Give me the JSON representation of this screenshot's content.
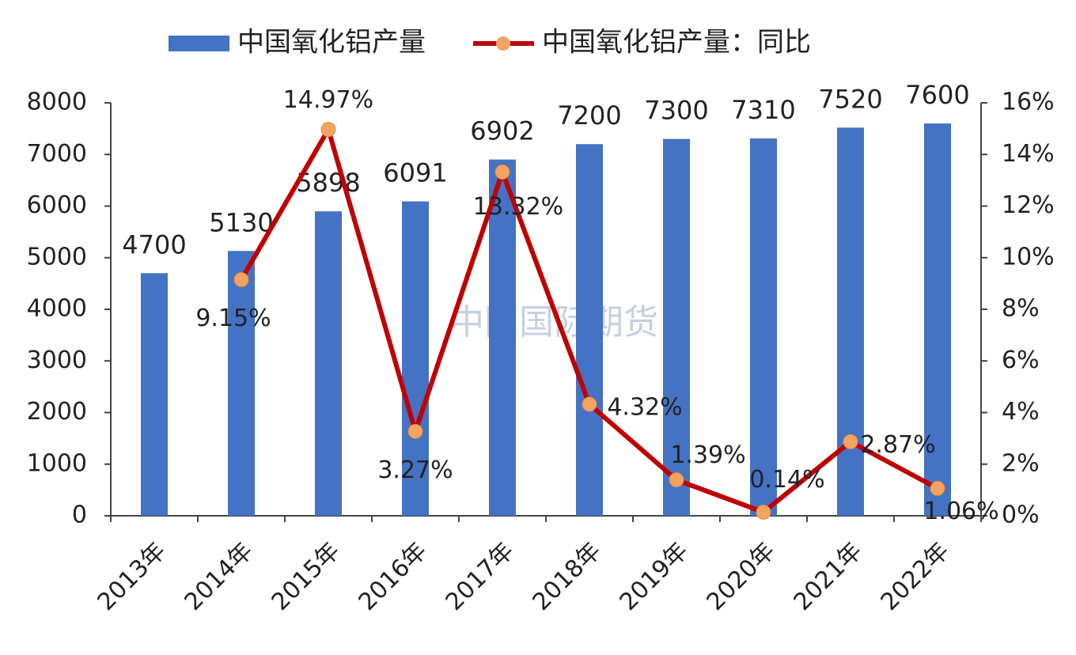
{
  "chart_data": {
    "type": "bar-line",
    "categories": [
      "2013年",
      "2014年",
      "2015年",
      "2016年",
      "2017年",
      "2018年",
      "2019年",
      "2020年",
      "2021年",
      "2022年"
    ],
    "series": [
      {
        "name": "中国氧化铝产量",
        "type": "bar",
        "color": "#4472c4",
        "values": [
          4700,
          5130,
          5898,
          6091,
          6902,
          7200,
          7300,
          7310,
          7520,
          7600
        ]
      },
      {
        "name": "中国氧化铝产量：同比",
        "type": "line",
        "axis": "y2",
        "color": "#c00000",
        "marker_color": "#f4a460",
        "values": [
          null,
          9.15,
          14.97,
          3.27,
          13.32,
          4.32,
          1.39,
          0.14,
          2.87,
          1.06
        ],
        "value_labels": [
          null,
          "9.15%",
          "14.97%",
          "3.27%",
          "13.32%",
          "4.32%",
          "1.39%",
          "0.14%",
          "2.87%",
          "1.06%"
        ]
      }
    ],
    "ylim": [
      0,
      8000
    ],
    "yticks": [
      0,
      1000,
      2000,
      3000,
      4000,
      5000,
      6000,
      7000,
      8000
    ],
    "y2lim": [
      0,
      16
    ],
    "y2ticks": [
      {
        "value": 0,
        "label": "0%"
      },
      {
        "value": 2,
        "label": "2%"
      },
      {
        "value": 4,
        "label": "4%"
      },
      {
        "value": 6,
        "label": "6%"
      },
      {
        "value": 8,
        "label": "8%"
      },
      {
        "value": 10,
        "label": "10%"
      },
      {
        "value": 12,
        "label": "12%"
      },
      {
        "value": 14,
        "label": "14%"
      },
      {
        "value": 16,
        "label": "16%"
      }
    ],
    "watermark": "中国国际期货",
    "legend": "top"
  }
}
